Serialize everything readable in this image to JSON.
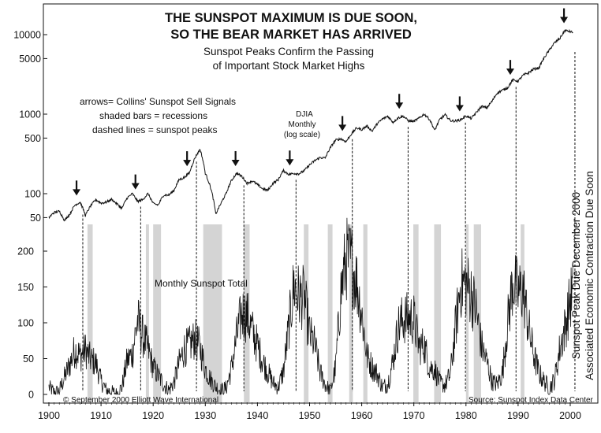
{
  "colors": {
    "ink": "#111111",
    "recession": "#d4d4d4",
    "background": "#ffffff"
  },
  "chart_data": {
    "type": "line",
    "title": "THE SUNSPOT MAXIMUM IS DUE SOON,\nSO THE BEAR MARKET HAS ARRIVED",
    "title_lines": [
      "THE SUNSPOT MAXIMUM IS DUE SOON,",
      "SO THE BEAR MARKET HAS ARRIVED"
    ],
    "subtitle_lines": [
      "Sunspot Peaks Confirm the Passing",
      "of Important Stock Market Highs"
    ],
    "legend_lines": [
      "arrows= Collins' Sunspot Sell Signals",
      "shaded bars = recessions",
      "dashed lines = sunspot peaks"
    ],
    "djia_label_lines": [
      "DJIA",
      "Monthly",
      "(log scale)"
    ],
    "sunspot_label": "Monthly Sunspot Total",
    "vertical_annotation_lines": [
      "Sunspot Peak Due December 2000",
      "Associated Economic Contraction Due Soon"
    ],
    "copyright": "© September 2000 Elliott Wave International",
    "source": "Source: Sunspot Index Data Center",
    "x_ticks": [
      1900,
      1910,
      1920,
      1930,
      1940,
      1950,
      1960,
      1970,
      1980,
      1990,
      2000
    ],
    "xlim": [
      1900,
      2001
    ],
    "djia_axis": {
      "scale": "log",
      "ylim": [
        30,
        14000
      ],
      "ticks": [
        50,
        100,
        500,
        1000,
        5000,
        10000
      ]
    },
    "sunspot_axis": {
      "ylim": [
        0,
        200
      ],
      "ticks": [
        0,
        50,
        100,
        150,
        200
      ]
    },
    "grid": false,
    "series": [
      {
        "name": "DJIA",
        "x": [
          1900,
          1901,
          1902,
          1903,
          1904,
          1905,
          1906,
          1907,
          1908,
          1909,
          1910,
          1911,
          1912,
          1913,
          1914,
          1915,
          1916,
          1917,
          1918,
          1919,
          1920,
          1921,
          1922,
          1923,
          1924,
          1925,
          1926,
          1927,
          1928,
          1929,
          1930,
          1931,
          1932,
          1933,
          1934,
          1935,
          1936,
          1937,
          1938,
          1939,
          1940,
          1941,
          1942,
          1943,
          1944,
          1945,
          1946,
          1947,
          1948,
          1949,
          1950,
          1951,
          1952,
          1953,
          1954,
          1955,
          1956,
          1957,
          1958,
          1959,
          1960,
          1961,
          1962,
          1963,
          1964,
          1965,
          1966,
          1967,
          1968,
          1969,
          1970,
          1971,
          1972,
          1973,
          1974,
          1975,
          1976,
          1977,
          1978,
          1979,
          1980,
          1981,
          1982,
          1983,
          1984,
          1985,
          1986,
          1987,
          1988,
          1989,
          1990,
          1991,
          1992,
          1993,
          1994,
          1995,
          1996,
          1997,
          1998,
          1999,
          2000.5
        ],
        "values": [
          50,
          58,
          60,
          46,
          55,
          72,
          78,
          53,
          70,
          84,
          76,
          78,
          85,
          75,
          65,
          88,
          100,
          80,
          84,
          100,
          75,
          72,
          96,
          96,
          110,
          150,
          160,
          185,
          280,
          360,
          180,
          120,
          55,
          75,
          100,
          145,
          180,
          165,
          135,
          145,
          130,
          115,
          110,
          135,
          150,
          195,
          175,
          180,
          178,
          195,
          230,
          260,
          285,
          280,
          380,
          470,
          490,
          450,
          560,
          670,
          640,
          710,
          610,
          760,
          870,
          940,
          790,
          900,
          940,
          820,
          810,
          890,
          1000,
          860,
          620,
          860,
          980,
          830,
          820,
          850,
          950,
          880,
          1050,
          1250,
          1200,
          1450,
          1850,
          2000,
          2150,
          2700,
          2600,
          3100,
          3300,
          3700,
          3800,
          5100,
          6400,
          7900,
          8900,
          11300,
          10700
        ]
      },
      {
        "name": "Monthly Sunspot Total",
        "x": [
          1900,
          1901,
          1902,
          1903,
          1904,
          1905,
          1906,
          1907,
          1908,
          1909,
          1910,
          1911,
          1912,
          1913,
          1914,
          1915,
          1916,
          1917,
          1918,
          1919,
          1920,
          1921,
          1922,
          1923,
          1924,
          1925,
          1926,
          1927,
          1928,
          1929,
          1930,
          1931,
          1932,
          1933,
          1934,
          1935,
          1936,
          1937,
          1938,
          1939,
          1940,
          1941,
          1942,
          1943,
          1944,
          1945,
          1946,
          1947,
          1948,
          1949,
          1950,
          1951,
          1952,
          1953,
          1954,
          1955,
          1956,
          1957,
          1958,
          1959,
          1960,
          1961,
          1962,
          1963,
          1964,
          1965,
          1966,
          1967,
          1968,
          1969,
          1970,
          1971,
          1972,
          1973,
          1974,
          1975,
          1976,
          1977,
          1978,
          1979,
          1980,
          1981,
          1982,
          1983,
          1984,
          1985,
          1986,
          1987,
          1988,
          1989,
          1990,
          1991,
          1992,
          1993,
          1994,
          1995,
          1996,
          1997,
          1998,
          1999,
          2000.5
        ],
        "values": [
          10,
          3,
          5,
          24,
          42,
          63,
          54,
          62,
          49,
          44,
          19,
          6,
          4,
          1,
          10,
          47,
          57,
          104,
          81,
          64,
          38,
          26,
          14,
          6,
          17,
          44,
          64,
          69,
          78,
          65,
          36,
          21,
          11,
          6,
          9,
          36,
          80,
          114,
          110,
          89,
          68,
          47,
          31,
          16,
          10,
          33,
          93,
          152,
          136,
          135,
          84,
          69,
          31,
          14,
          4,
          38,
          142,
          190,
          185,
          159,
          112,
          54,
          38,
          28,
          10,
          15,
          47,
          94,
          106,
          106,
          105,
          67,
          69,
          38,
          35,
          16,
          13,
          28,
          93,
          155,
          155,
          141,
          116,
          67,
          46,
          18,
          14,
          30,
          100,
          158,
          142,
          146,
          94,
          55,
          30,
          18,
          9,
          21,
          64,
          93,
          150
        ]
      }
    ],
    "recessions": [
      [
        1907.4,
        1908.4
      ],
      [
        1918.6,
        1919.2
      ],
      [
        1920.0,
        1921.5
      ],
      [
        1929.6,
        1933.2
      ],
      [
        1937.4,
        1938.5
      ],
      [
        1948.9,
        1949.8
      ],
      [
        1953.5,
        1954.4
      ],
      [
        1957.6,
        1958.3
      ],
      [
        1960.3,
        1961.1
      ],
      [
        1969.9,
        1970.9
      ],
      [
        1973.9,
        1975.2
      ],
      [
        1980.0,
        1980.5
      ],
      [
        1981.5,
        1982.9
      ],
      [
        1990.5,
        1991.2
      ]
    ],
    "sunspot_peaks": [
      1906.5,
      1917.6,
      1928.3,
      1937.4,
      1947.4,
      1958.2,
      1968.9,
      1979.9,
      1989.6,
      2000.9
    ],
    "sell_signal_arrows": [
      1905.3,
      1916.6,
      1926.5,
      1935.8,
      1946.2,
      1956.3,
      1967.2,
      1978.8,
      1988.5,
      1998.8
    ]
  }
}
